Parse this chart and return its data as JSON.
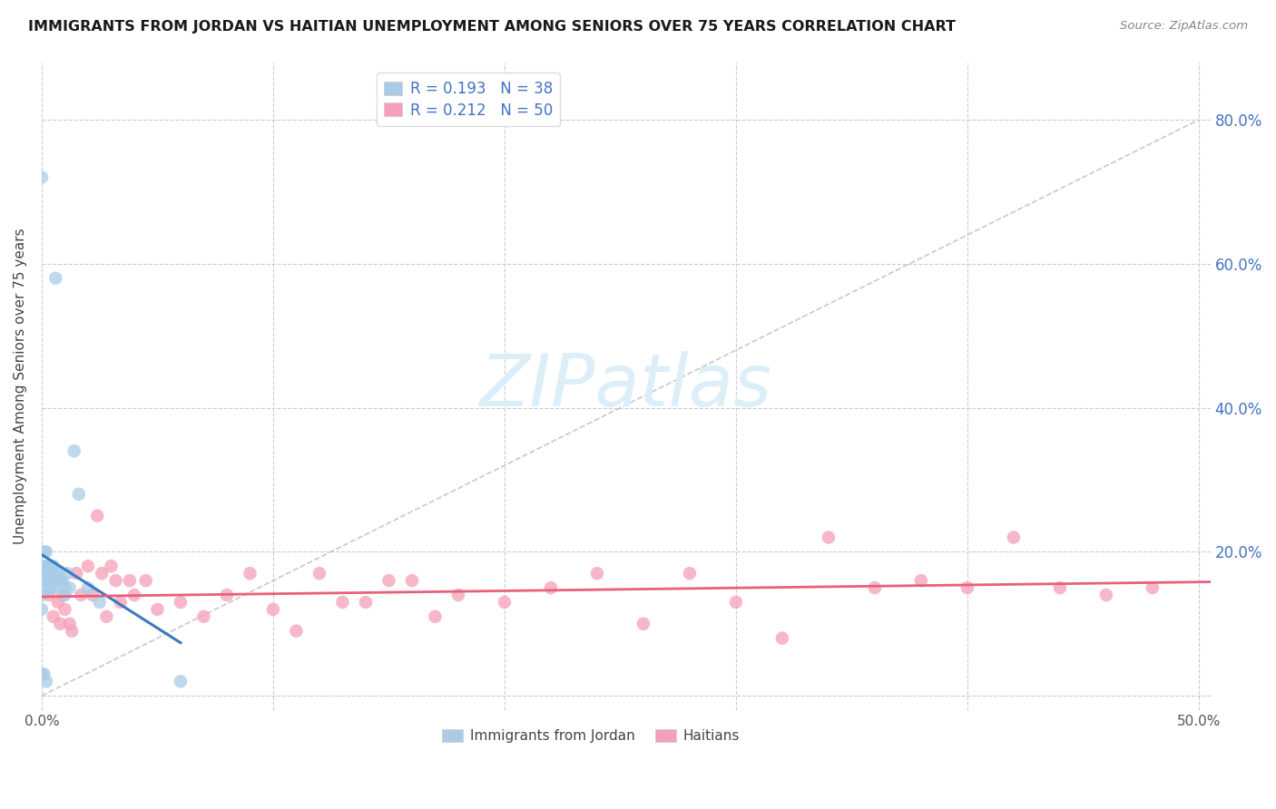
{
  "title": "IMMIGRANTS FROM JORDAN VS HAITIAN UNEMPLOYMENT AMONG SENIORS OVER 75 YEARS CORRELATION CHART",
  "source": "Source: ZipAtlas.com",
  "ylabel": "Unemployment Among Seniors over 75 years",
  "jordan_R": 0.193,
  "jordan_N": 38,
  "haitian_R": 0.212,
  "haitian_N": 50,
  "jordan_color": "#a8cce8",
  "haitian_color": "#f4a0b8",
  "jordan_line_color": "#3a7abf",
  "haitian_line_color": "#e8607a",
  "diagonal_color": "#bbbbbb",
  "background_color": "#ffffff",
  "watermark_text": "ZIPatlas",
  "watermark_color": "#dceef8",
  "xlim": [
    0.0,
    0.505
  ],
  "ylim": [
    -0.02,
    0.88
  ],
  "jordan_x": [
    0.0,
    0.0,
    0.0,
    0.0,
    0.001,
    0.001,
    0.001,
    0.001,
    0.001,
    0.002,
    0.002,
    0.002,
    0.002,
    0.002,
    0.003,
    0.003,
    0.003,
    0.003,
    0.004,
    0.004,
    0.004,
    0.005,
    0.005,
    0.005,
    0.006,
    0.006,
    0.007,
    0.008,
    0.009,
    0.01,
    0.01,
    0.011,
    0.012,
    0.014,
    0.016,
    0.02,
    0.025,
    0.06
  ],
  "jordan_y": [
    0.72,
    0.14,
    0.12,
    0.03,
    0.2,
    0.18,
    0.17,
    0.16,
    0.03,
    0.2,
    0.18,
    0.17,
    0.16,
    0.02,
    0.18,
    0.17,
    0.16,
    0.15,
    0.18,
    0.17,
    0.15,
    0.18,
    0.16,
    0.15,
    0.58,
    0.17,
    0.17,
    0.16,
    0.16,
    0.15,
    0.14,
    0.17,
    0.15,
    0.34,
    0.28,
    0.15,
    0.13,
    0.02
  ],
  "haitian_x": [
    0.003,
    0.005,
    0.007,
    0.008,
    0.009,
    0.01,
    0.012,
    0.013,
    0.015,
    0.017,
    0.02,
    0.022,
    0.024,
    0.026,
    0.028,
    0.03,
    0.032,
    0.034,
    0.038,
    0.04,
    0.045,
    0.05,
    0.06,
    0.07,
    0.08,
    0.09,
    0.1,
    0.11,
    0.12,
    0.13,
    0.14,
    0.15,
    0.16,
    0.17,
    0.18,
    0.2,
    0.22,
    0.24,
    0.26,
    0.28,
    0.3,
    0.32,
    0.34,
    0.36,
    0.38,
    0.4,
    0.42,
    0.44,
    0.46,
    0.48
  ],
  "haitian_y": [
    0.14,
    0.11,
    0.13,
    0.1,
    0.14,
    0.12,
    0.1,
    0.09,
    0.17,
    0.14,
    0.18,
    0.14,
    0.25,
    0.17,
    0.11,
    0.18,
    0.16,
    0.13,
    0.16,
    0.14,
    0.16,
    0.12,
    0.13,
    0.11,
    0.14,
    0.17,
    0.12,
    0.09,
    0.17,
    0.13,
    0.13,
    0.16,
    0.16,
    0.11,
    0.14,
    0.13,
    0.15,
    0.17,
    0.1,
    0.17,
    0.13,
    0.08,
    0.22,
    0.15,
    0.16,
    0.15,
    0.22,
    0.15,
    0.14,
    0.15
  ]
}
